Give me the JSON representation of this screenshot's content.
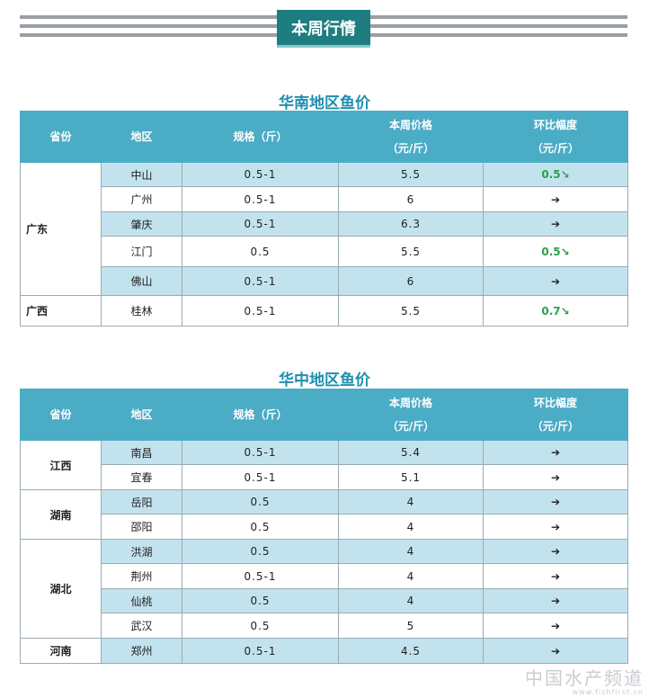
{
  "banner": {
    "title": "本周行情"
  },
  "columns": {
    "province": "省份",
    "region": "地区",
    "spec": "规格（斤）",
    "price_line1": "本周价格",
    "price_line2": "（元/斤）",
    "change_line1": "环比幅度",
    "change_line2": "（元/斤）"
  },
  "south": {
    "title": "华南地区鱼价",
    "groups": [
      {
        "province": "广东",
        "rows": [
          {
            "region": "中山",
            "spec": "0.5-1",
            "price": "5.5",
            "change": "0.5↘"
          },
          {
            "region": "广州",
            "spec": "0.5-1",
            "price": "6",
            "change": "➔"
          },
          {
            "region": "肇庆",
            "spec": "0.5-1",
            "price": "6.3",
            "change": "➔"
          },
          {
            "region": "江门",
            "spec": "0.5",
            "price": "5.5",
            "change": "0.5↘"
          },
          {
            "region": "佛山",
            "spec": "0.5-1",
            "price": "6",
            "change": "➔"
          }
        ]
      },
      {
        "province": "广西",
        "rows": [
          {
            "region": "桂林",
            "spec": "0.5-1",
            "price": "5.5",
            "change": "0.7↘"
          }
        ]
      }
    ]
  },
  "central": {
    "title": "华中地区鱼价",
    "groups": [
      {
        "province": "江西",
        "rows": [
          {
            "region": "南昌",
            "spec": "0.5-1",
            "price": "5.4",
            "change": "➔"
          },
          {
            "region": "宜春",
            "spec": "0.5-1",
            "price": "5.1",
            "change": "➔"
          }
        ]
      },
      {
        "province": "湖南",
        "rows": [
          {
            "region": "岳阳",
            "spec": "0.5",
            "price": "4",
            "change": "➔"
          },
          {
            "region": "邵阳",
            "spec": "0.5",
            "price": "4",
            "change": "➔"
          }
        ]
      },
      {
        "province": "湖北",
        "rows": [
          {
            "region": "洪湖",
            "spec": "0.5",
            "price": "4",
            "change": "➔"
          },
          {
            "region": "荆州",
            "spec": "0.5-1",
            "price": "4",
            "change": "➔"
          },
          {
            "region": "仙桃",
            "spec": "0.5",
            "price": "4",
            "change": "➔"
          },
          {
            "region": "武汉",
            "spec": "0.5",
            "price": "5",
            "change": "➔"
          }
        ]
      },
      {
        "province": "河南",
        "rows": [
          {
            "region": "郑州",
            "spec": "0.5-1",
            "price": "4.5",
            "change": "➔"
          }
        ]
      }
    ]
  },
  "watermark": {
    "text": "中国水产频道",
    "url": "www.fishfirst.cn"
  }
}
